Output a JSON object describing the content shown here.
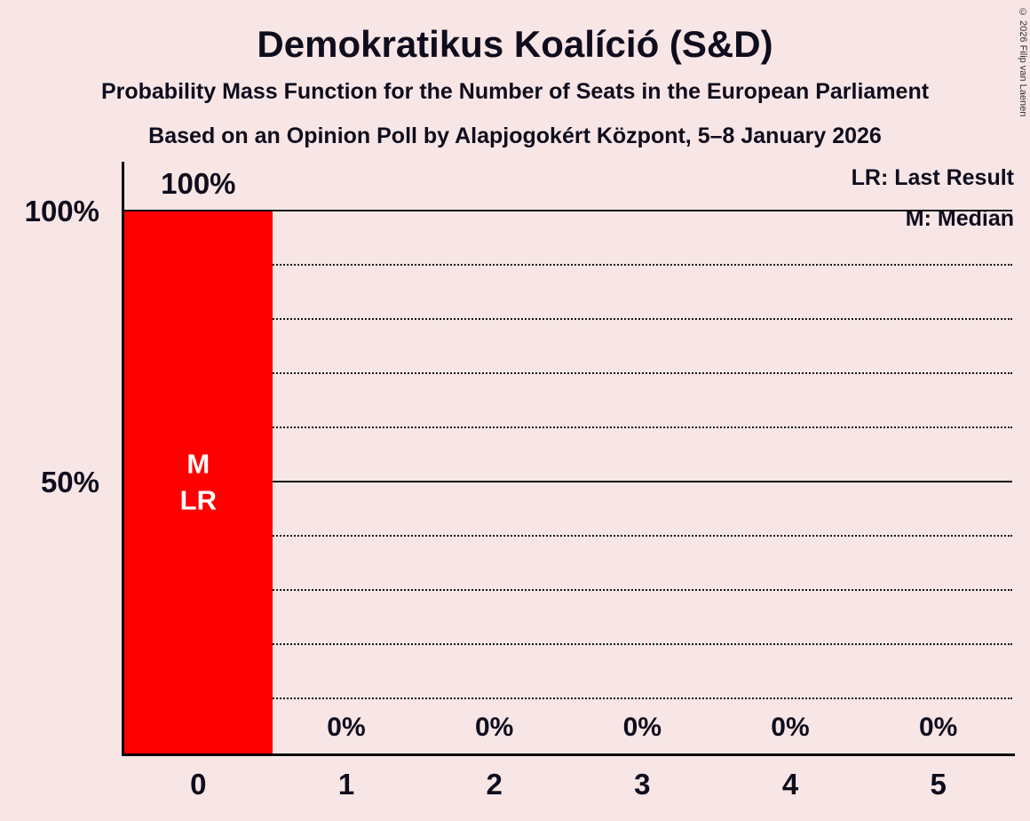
{
  "meta": {
    "copyright": "© 2026 Filip van Laenen"
  },
  "header": {
    "title": "Demokratikus Koalíció (S&D)",
    "subtitle1": "Probability Mass Function for the Number of Seats in the European Parliament",
    "subtitle2": "Based on an Opinion Poll by Alapjogokért Központ, 5–8 January 2026"
  },
  "legend": {
    "lr": "LR: Last Result",
    "m": "M: Median"
  },
  "chart_data": {
    "type": "bar",
    "title": "Demokratikus Koalíció (S&D)",
    "categories": [
      "0",
      "1",
      "2",
      "3",
      "4",
      "5"
    ],
    "values": [
      100,
      0,
      0,
      0,
      0,
      0
    ],
    "bar_labels": [
      "100%",
      "0%",
      "0%",
      "0%",
      "0%",
      "0%"
    ],
    "bar_annotations": [
      [
        "M",
        "LR"
      ],
      [],
      [],
      [],
      [],
      []
    ],
    "median_seats": 0,
    "last_result_seats": 0,
    "ylim": [
      0,
      100
    ],
    "yticks": [
      {
        "value": 50,
        "label": "50%"
      },
      {
        "value": 100,
        "label": "100%"
      }
    ],
    "gridlines": {
      "solid": [
        50,
        100
      ],
      "dotted": [
        10,
        20,
        30,
        40,
        60,
        70,
        80,
        90
      ]
    },
    "legend_position": "top-right",
    "grid": true,
    "colors": {
      "bar": "#FF0000",
      "background": "#F8E6E6",
      "text": "#0F0D1D",
      "annotation_text": "#FFFFFF"
    }
  }
}
